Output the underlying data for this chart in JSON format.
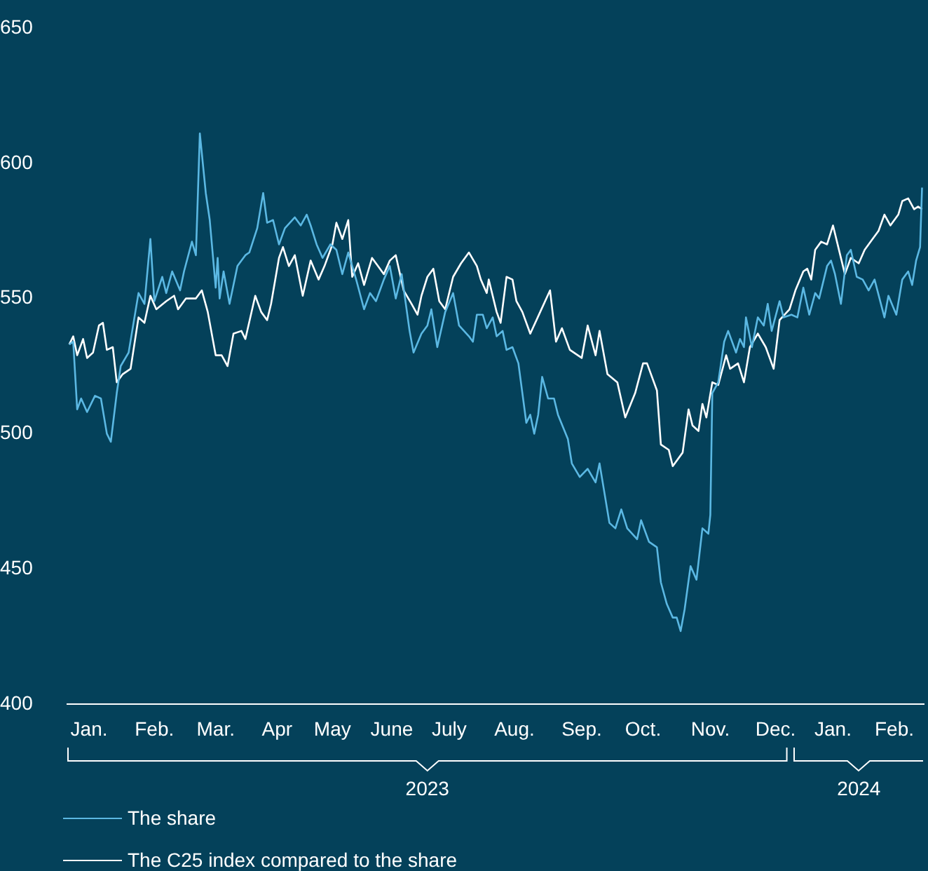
{
  "chart_data": {
    "type": "line",
    "xlim": [
      "2023-01-01",
      "2024-03-09"
    ],
    "ylim": [
      400,
      650
    ],
    "yticks": [
      400,
      450,
      500,
      550,
      600,
      650
    ],
    "xticks": [
      {
        "value": "2023-01-12",
        "label": "Jan."
      },
      {
        "value": "2023-02-14",
        "label": "Feb."
      },
      {
        "value": "2023-03-17",
        "label": "Mar."
      },
      {
        "value": "2023-04-17",
        "label": "Apr"
      },
      {
        "value": "2023-05-15",
        "label": "May"
      },
      {
        "value": "2023-06-14",
        "label": "June"
      },
      {
        "value": "2023-07-13",
        "label": "July"
      },
      {
        "value": "2023-08-15",
        "label": "Aug."
      },
      {
        "value": "2023-09-18",
        "label": "Sep."
      },
      {
        "value": "2023-10-19",
        "label": "Oct."
      },
      {
        "value": "2023-11-22",
        "label": "Nov."
      },
      {
        "value": "2023-12-25",
        "label": "Dec."
      },
      {
        "value": "2024-01-23",
        "label": "Jan."
      },
      {
        "value": "2024-02-23",
        "label": "Feb."
      }
    ],
    "annotations": [
      "2023",
      "2024"
    ],
    "legend": "bottom left",
    "grid": false,
    "marker": "none",
    "line_style": "solid",
    "series": [
      {
        "name": "The share",
        "color": "#5bb8e3",
        "x": [
          "2023-01-02",
          "2023-01-04",
          "2023-01-06",
          "2023-01-08",
          "2023-01-11",
          "2023-01-15",
          "2023-01-18",
          "2023-01-21",
          "2023-01-23",
          "2023-01-26",
          "2023-01-28",
          "2023-02-01",
          "2023-02-06",
          "2023-02-09",
          "2023-02-12",
          "2023-02-14",
          "2023-02-18",
          "2023-02-20",
          "2023-02-23",
          "2023-02-27",
          "2023-03-01",
          "2023-03-05",
          "2023-03-07",
          "2023-03-09",
          "2023-03-12",
          "2023-03-14",
          "2023-03-17",
          "2023-03-18",
          "2023-03-19",
          "2023-03-21",
          "2023-03-24",
          "2023-03-28",
          "2023-04-01",
          "2023-04-03",
          "2023-04-07",
          "2023-04-10",
          "2023-04-12",
          "2023-04-15",
          "2023-04-18",
          "2023-04-21",
          "2023-04-26",
          "2023-04-29",
          "2023-05-02",
          "2023-05-04",
          "2023-05-07",
          "2023-05-10",
          "2023-05-14",
          "2023-05-17",
          "2023-05-20",
          "2023-05-23",
          "2023-05-27",
          "2023-05-31",
          "2023-06-03",
          "2023-06-06",
          "2023-06-10",
          "2023-06-13",
          "2023-06-16",
          "2023-06-19",
          "2023-06-23",
          "2023-06-25",
          "2023-06-29",
          "2023-07-02",
          "2023-07-04",
          "2023-07-07",
          "2023-07-11",
          "2023-07-15",
          "2023-07-18",
          "2023-07-23",
          "2023-07-25",
          "2023-07-27",
          "2023-07-30",
          "2023-08-01",
          "2023-08-04",
          "2023-08-06",
          "2023-08-09",
          "2023-08-11",
          "2023-08-14",
          "2023-08-17",
          "2023-08-21",
          "2023-08-23",
          "2023-08-25",
          "2023-08-27",
          "2023-08-29",
          "2023-09-01",
          "2023-09-04",
          "2023-09-06",
          "2023-09-11",
          "2023-09-13",
          "2023-09-17",
          "2023-09-21",
          "2023-09-25",
          "2023-09-27",
          "2023-10-02",
          "2023-10-05",
          "2023-10-08",
          "2023-10-11",
          "2023-10-16",
          "2023-10-18",
          "2023-10-22",
          "2023-10-26",
          "2023-10-28",
          "2023-10-31",
          "2023-11-03",
          "2023-11-05",
          "2023-11-07",
          "2023-11-09",
          "2023-11-12",
          "2023-11-15",
          "2023-11-18",
          "2023-11-21",
          "2023-11-22",
          "2023-11-23",
          "2023-11-26",
          "2023-11-29",
          "2023-12-01",
          "2023-12-05",
          "2023-12-07",
          "2023-12-09",
          "2023-12-10",
          "2023-12-13",
          "2023-12-16",
          "2023-12-19",
          "2023-12-21",
          "2023-12-23",
          "2023-12-27",
          "2023-12-29",
          "2024-01-02",
          "2024-01-05",
          "2024-01-08",
          "2024-01-11",
          "2024-01-14",
          "2024-01-16",
          "2024-01-20",
          "2024-01-22",
          "2024-01-24",
          "2024-01-27",
          "2024-01-30",
          "2024-02-01",
          "2024-02-04",
          "2024-02-07",
          "2024-02-10",
          "2024-02-13",
          "2024-02-18",
          "2024-02-20",
          "2024-02-24",
          "2024-02-27",
          "2024-03-01",
          "2024-03-03",
          "2024-03-05",
          "2024-03-07",
          "2024-03-08"
        ],
        "values": [
          533,
          534,
          509,
          513,
          508,
          514,
          513,
          500,
          497,
          515,
          525,
          530,
          552,
          548,
          572,
          549,
          558,
          552,
          560,
          553,
          560,
          571,
          566,
          611,
          589,
          579,
          554,
          565,
          550,
          560,
          548,
          562,
          566,
          567,
          576,
          589,
          578,
          579,
          570,
          576,
          580,
          577,
          581,
          577,
          570,
          565,
          570,
          568,
          559,
          567,
          557,
          546,
          552,
          549,
          557,
          562,
          550,
          559,
          538,
          530,
          537,
          540,
          546,
          532,
          545,
          552,
          540,
          536,
          534,
          544,
          544,
          539,
          543,
          536,
          538,
          531,
          532,
          526,
          504,
          507,
          500,
          507,
          521,
          513,
          513,
          507,
          498,
          489,
          484,
          487,
          482,
          489,
          467,
          465,
          472,
          465,
          461,
          468,
          460,
          458,
          445,
          437,
          432,
          432,
          427,
          435,
          451,
          446,
          465,
          463,
          470,
          515,
          519,
          534,
          538,
          530,
          535,
          532,
          543,
          532,
          543,
          540,
          548,
          538,
          549,
          543,
          544,
          543,
          554,
          544,
          552,
          550,
          562,
          564,
          559,
          548,
          566,
          568,
          558,
          557,
          553,
          557,
          543,
          551,
          544,
          557,
          560,
          555,
          564,
          569,
          591
        ]
      },
      {
        "name": "The C25 index compared to the share",
        "color": "#ffffff",
        "x": [
          "2023-01-02",
          "2023-01-04",
          "2023-01-06",
          "2023-01-09",
          "2023-01-11",
          "2023-01-14",
          "2023-01-17",
          "2023-01-19",
          "2023-01-21",
          "2023-01-24",
          "2023-01-26",
          "2023-01-29",
          "2023-02-02",
          "2023-02-06",
          "2023-02-09",
          "2023-02-12",
          "2023-02-15",
          "2023-02-20",
          "2023-02-24",
          "2023-02-26",
          "2023-03-02",
          "2023-03-07",
          "2023-03-10",
          "2023-03-13",
          "2023-03-17",
          "2023-03-20",
          "2023-03-23",
          "2023-03-26",
          "2023-03-30",
          "2023-04-01",
          "2023-04-06",
          "2023-04-09",
          "2023-04-12",
          "2023-04-14",
          "2023-04-18",
          "2023-04-20",
          "2023-04-23",
          "2023-04-26",
          "2023-04-30",
          "2023-05-04",
          "2023-05-08",
          "2023-05-11",
          "2023-05-15",
          "2023-05-17",
          "2023-05-20",
          "2023-05-23",
          "2023-05-25",
          "2023-05-28",
          "2023-05-31",
          "2023-06-04",
          "2023-06-07",
          "2023-06-10",
          "2023-06-13",
          "2023-06-16",
          "2023-06-20",
          "2023-06-24",
          "2023-06-27",
          "2023-06-29",
          "2023-07-02",
          "2023-07-05",
          "2023-07-08",
          "2023-07-11",
          "2023-07-15",
          "2023-07-19",
          "2023-07-23",
          "2023-07-27",
          "2023-07-29",
          "2023-08-01",
          "2023-08-02",
          "2023-08-06",
          "2023-08-08",
          "2023-08-11",
          "2023-08-14",
          "2023-08-16",
          "2023-08-19",
          "2023-08-23",
          "2023-08-28",
          "2023-09-02",
          "2023-09-05",
          "2023-09-08",
          "2023-09-12",
          "2023-09-18",
          "2023-09-21",
          "2023-09-25",
          "2023-09-27",
          "2023-10-01",
          "2023-10-06",
          "2023-10-10",
          "2023-10-15",
          "2023-10-19",
          "2023-10-21",
          "2023-10-26",
          "2023-10-28",
          "2023-11-01",
          "2023-11-03",
          "2023-11-08",
          "2023-11-11",
          "2023-11-13",
          "2023-11-16",
          "2023-11-18",
          "2023-11-20",
          "2023-11-23",
          "2023-11-26",
          "2023-11-30",
          "2023-12-02",
          "2023-12-06",
          "2023-12-09",
          "2023-12-12",
          "2023-12-16",
          "2023-12-20",
          "2023-12-24",
          "2023-12-27",
          "2024-01-01",
          "2024-01-04",
          "2024-01-08",
          "2024-01-10",
          "2024-01-12",
          "2024-01-14",
          "2024-01-17",
          "2024-01-20",
          "2024-01-23",
          "2024-01-25",
          "2024-01-29",
          "2024-02-01",
          "2024-02-05",
          "2024-02-08",
          "2024-02-12",
          "2024-02-15",
          "2024-02-18",
          "2024-02-21",
          "2024-02-25",
          "2024-02-27",
          "2024-03-01",
          "2024-03-04",
          "2024-03-06",
          "2024-03-08"
        ],
        "values": [
          533,
          536,
          529,
          535,
          528,
          530,
          540,
          541,
          531,
          532,
          519,
          522,
          524,
          543,
          541,
          551,
          546,
          549,
          551,
          546,
          550,
          550,
          553,
          545,
          529,
          529,
          525,
          537,
          538,
          535,
          551,
          545,
          542,
          548,
          565,
          569,
          562,
          566,
          551,
          564,
          557,
          562,
          570,
          578,
          572,
          579,
          558,
          563,
          555,
          565,
          562,
          559,
          564,
          566,
          553,
          548,
          544,
          551,
          558,
          561,
          549,
          546,
          558,
          563,
          567,
          562,
          557,
          552,
          557,
          545,
          541,
          558,
          557,
          549,
          545,
          537,
          545,
          553,
          534,
          539,
          531,
          528,
          540,
          529,
          538,
          522,
          519,
          506,
          515,
          526,
          526,
          516,
          496,
          494,
          488,
          493,
          509,
          503,
          501,
          511,
          506,
          519,
          518,
          529,
          524,
          526,
          519,
          532,
          537,
          532,
          524,
          542,
          546,
          553,
          560,
          561,
          557,
          568,
          571,
          570,
          577,
          571,
          559,
          565,
          563,
          568,
          572,
          575,
          581,
          577,
          581,
          586,
          587,
          583,
          584,
          583
        ]
      }
    ]
  }
}
